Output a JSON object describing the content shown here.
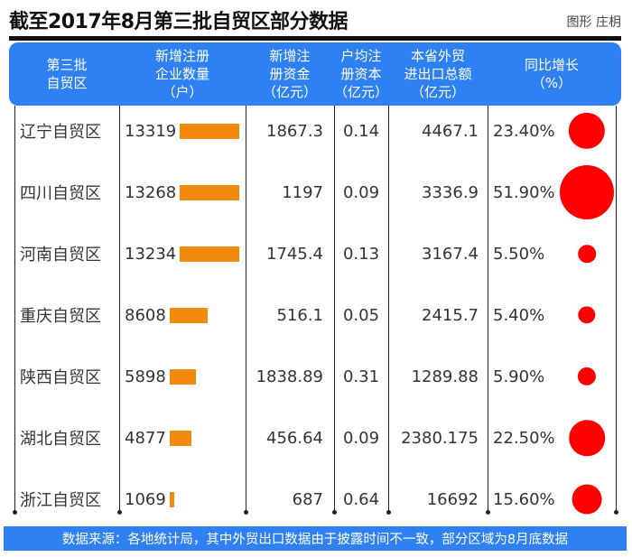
{
  "title": "截至2017年8月第三批自贸区部分数据",
  "credit": "图形 庄枂",
  "headers": [
    "第三批\n自贸区",
    "新增注册\n企业数量\n（户）",
    "新增注\n册资金\n（亿元）",
    "户均注\n册资本\n（亿元）",
    "本省外贸\n进出口总额\n（亿元）",
    "同比增长\n（%）"
  ],
  "accent": "#2f80f3",
  "bar_color": "#f28a0e",
  "dot_color": "#ff0000",
  "rows": [
    {
      "name": "辽宁自贸区",
      "firms": "13319",
      "capital": "1867.3",
      "avg": "0.14",
      "trade": "4467.1",
      "growth": "23.40%",
      "firms_value": 13319,
      "growth_value": 23.4
    },
    {
      "name": "四川自贸区",
      "firms": "13268",
      "capital": "1197",
      "avg": "0.09",
      "trade": "3336.9",
      "growth": "51.90%",
      "firms_value": 13268,
      "growth_value": 51.9
    },
    {
      "name": "河南自贸区",
      "firms": "13234",
      "capital": "1745.4",
      "avg": "0.13",
      "trade": "3167.4",
      "growth": "5.50%",
      "firms_value": 13234,
      "growth_value": 5.5
    },
    {
      "name": "重庆自贸区",
      "firms": "8608",
      "capital": "516.1",
      "avg": "0.05",
      "trade": "2415.7",
      "growth": "5.40%",
      "firms_value": 8608,
      "growth_value": 5.4
    },
    {
      "name": "陕西自贸区",
      "firms": "5898",
      "capital": "1838.89",
      "avg": "0.31",
      "trade": "1289.88",
      "growth": "5.90%",
      "firms_value": 5898,
      "growth_value": 5.9
    },
    {
      "name": "湖北自贸区",
      "firms": "4877",
      "capital": "456.64",
      "avg": "0.09",
      "trade": "2380.175",
      "growth": "22.50%",
      "firms_value": 4877,
      "growth_value": 22.5
    },
    {
      "name": "浙江自贸区",
      "firms": "1069",
      "capital": "687",
      "avg": "0.64",
      "trade": "16692",
      "growth": "15.60%",
      "firms_value": 1069,
      "growth_value": 15.6
    }
  ],
  "footer": "数据来源：各地统计局，其中外贸出口数据由于披露时间不一致，部分区域为8月底数据"
}
